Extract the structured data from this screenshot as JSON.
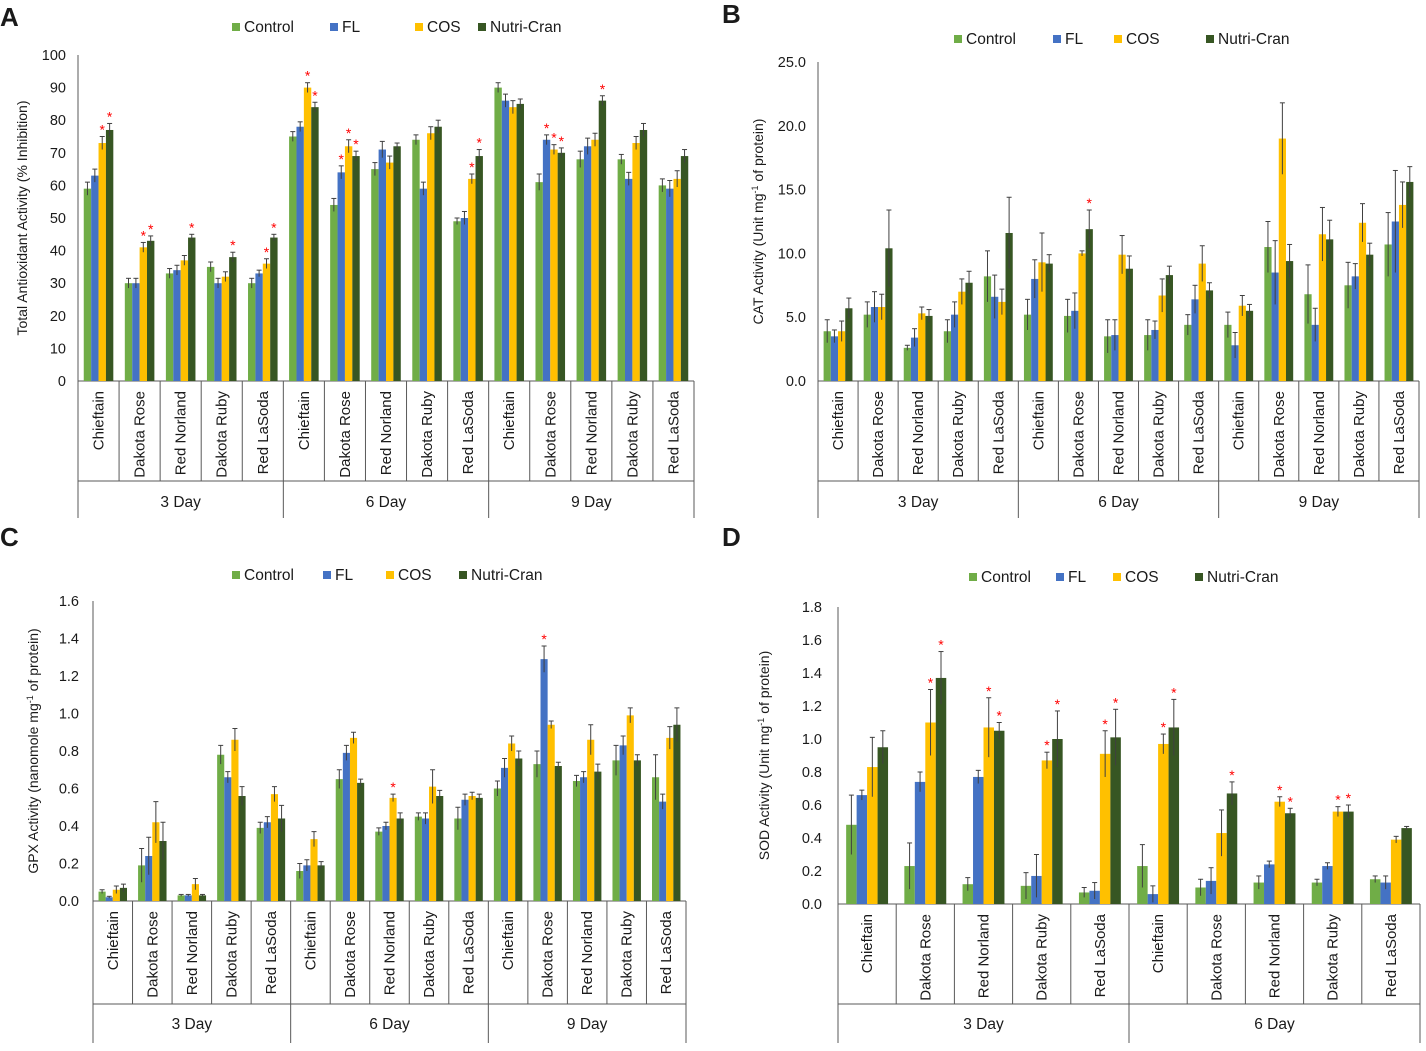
{
  "legend": [
    "Control",
    "FL",
    "COS",
    "Nutri-Cran"
  ],
  "colors": {
    "Control": "#70ad47",
    "FL": "#4472c4",
    "COS": "#ffc000",
    "Nutri-Cran": "#375623",
    "sig": "#ff0000",
    "axis": "#595959",
    "err": "#404040"
  },
  "chart_data": [
    {
      "panel": "A",
      "type": "bar",
      "ylabel": "Total Antioxidant Activity (% Inhibition)",
      "ylim": [
        0,
        100
      ],
      "ystep": 10,
      "ytick_decimals": 0,
      "varieties": [
        "Chieftain",
        "Dakota Rose",
        "Red Norland",
        "Dakota Ruby",
        "Red LaSoda"
      ],
      "groups": [
        "3 Day",
        "6 Day",
        "9 Day"
      ],
      "series": [
        {
          "name": "Control",
          "values": [
            59,
            30,
            33,
            35,
            30,
            75,
            54,
            65,
            74,
            49,
            90,
            61,
            68,
            68,
            60
          ],
          "errors": [
            2,
            1.5,
            1.5,
            1.5,
            1.5,
            1.5,
            2,
            2,
            1.5,
            1,
            1.5,
            2.5,
            2.5,
            1.5,
            2
          ],
          "sig": [
            false,
            false,
            false,
            false,
            false,
            false,
            false,
            false,
            false,
            false,
            false,
            false,
            false,
            false,
            false
          ]
        },
        {
          "name": "FL",
          "values": [
            63,
            30,
            34,
            30,
            33,
            78,
            64,
            71,
            59,
            50,
            86,
            74,
            72,
            62,
            59
          ],
          "errors": [
            2,
            1.5,
            1.5,
            1.5,
            1,
            1.5,
            2,
            2.5,
            2,
            2,
            2,
            1.5,
            2.5,
            2,
            2.5
          ],
          "sig": [
            false,
            false,
            false,
            false,
            false,
            false,
            true,
            false,
            false,
            false,
            false,
            true,
            false,
            false,
            false
          ]
        },
        {
          "name": "COS",
          "values": [
            73,
            41,
            37,
            32,
            36,
            90,
            72,
            67,
            76,
            62,
            84,
            71,
            74,
            73,
            62
          ],
          "errors": [
            2,
            1.5,
            1.5,
            1.5,
            1.5,
            1.5,
            2,
            2,
            2,
            1.5,
            2,
            1.5,
            2,
            2,
            2.5
          ],
          "sig": [
            true,
            true,
            false,
            false,
            true,
            true,
            true,
            false,
            false,
            true,
            false,
            true,
            false,
            false,
            false
          ]
        },
        {
          "name": "Nutri-Cran",
          "values": [
            77,
            43,
            44,
            38,
            44,
            84,
            69,
            72,
            78,
            69,
            85,
            70,
            86,
            77,
            69
          ],
          "errors": [
            2,
            1.5,
            1,
            1.5,
            1,
            1.5,
            1.5,
            1,
            2,
            2,
            1.5,
            1.5,
            1.5,
            2,
            2
          ],
          "sig": [
            true,
            true,
            true,
            true,
            true,
            true,
            true,
            false,
            false,
            true,
            false,
            true,
            true,
            false,
            false
          ]
        }
      ]
    },
    {
      "panel": "B",
      "type": "bar",
      "ylabel": "CAT Activity (Unit mg",
      "ylabel_sup": "-1",
      "ylabel_end": " of protein)",
      "ylim": [
        0,
        25
      ],
      "ystep": 5,
      "ytick_decimals": 1,
      "varieties": [
        "Chieftain",
        "Dakota Rose",
        "Red Norland",
        "Dakota Ruby",
        "Red LaSoda"
      ],
      "groups": [
        "3 Day",
        "6 Day",
        "9 Day"
      ],
      "series": [
        {
          "name": "Control",
          "values": [
            3.9,
            5.2,
            2.6,
            3.9,
            8.2,
            5.2,
            5.1,
            3.5,
            3.6,
            4.4,
            4.4,
            10.5,
            6.8,
            7.5,
            10.7
          ],
          "errors": [
            0.9,
            1.0,
            0.2,
            0.9,
            2.0,
            1.2,
            1.3,
            1.3,
            1.2,
            0.8,
            1.0,
            2.0,
            2.3,
            1.8,
            2.5
          ],
          "sig": [
            false,
            false,
            false,
            false,
            false,
            false,
            false,
            false,
            false,
            false,
            false,
            false,
            false,
            false,
            false
          ]
        },
        {
          "name": "FL",
          "values": [
            3.5,
            5.8,
            3.4,
            5.2,
            6.6,
            8.0,
            5.5,
            3.6,
            4.0,
            6.4,
            2.8,
            8.5,
            4.4,
            8.2,
            12.5
          ],
          "errors": [
            0.5,
            1.2,
            0.7,
            1.0,
            1.7,
            1.5,
            1.4,
            1.2,
            0.7,
            1.1,
            1.0,
            2.5,
            1.3,
            1.0,
            4.0
          ],
          "sig": [
            false,
            false,
            false,
            false,
            false,
            false,
            false,
            false,
            false,
            false,
            false,
            false,
            false,
            false,
            false
          ]
        },
        {
          "name": "COS",
          "values": [
            3.9,
            5.8,
            5.3,
            7.0,
            6.2,
            9.3,
            10.0,
            9.9,
            6.7,
            9.2,
            5.9,
            19.0,
            11.5,
            12.4,
            13.8
          ],
          "errors": [
            0.8,
            1.0,
            0.5,
            1.0,
            1.0,
            2.3,
            0.2,
            1.5,
            1.3,
            1.4,
            0.8,
            2.8,
            2.1,
            1.5,
            1.8
          ],
          "sig": [
            false,
            false,
            false,
            false,
            false,
            false,
            false,
            false,
            false,
            false,
            false,
            false,
            false,
            false,
            false
          ]
        },
        {
          "name": "Nutri-Cran",
          "values": [
            5.7,
            10.4,
            5.1,
            7.7,
            11.6,
            9.2,
            11.9,
            8.8,
            8.3,
            7.1,
            5.5,
            9.4,
            11.1,
            9.9,
            15.6
          ],
          "errors": [
            0.8,
            3.0,
            0.5,
            0.9,
            2.8,
            0.7,
            1.5,
            1.0,
            0.7,
            0.6,
            0.5,
            1.3,
            1.5,
            0.9,
            1.2
          ],
          "sig": [
            false,
            false,
            false,
            false,
            false,
            false,
            true,
            false,
            false,
            false,
            false,
            false,
            false,
            false,
            false
          ]
        }
      ]
    },
    {
      "panel": "C",
      "type": "bar",
      "ylabel": "GPX Activity (nanomole  mg",
      "ylabel_sup": "-1",
      "ylabel_end": " of protein)",
      "ylim": [
        0,
        1.6
      ],
      "ystep": 0.2,
      "ytick_decimals": 1,
      "varieties": [
        "Chieftain",
        "Dakota Rose",
        "Red Norland",
        "Dakota Ruby",
        "Red LaSoda"
      ],
      "groups": [
        "3 Day",
        "6 Day",
        "9 Day"
      ],
      "series": [
        {
          "name": "Control",
          "values": [
            0.05,
            0.19,
            0.03,
            0.78,
            0.39,
            0.16,
            0.65,
            0.37,
            0.45,
            0.44,
            0.6,
            0.73,
            0.64,
            0.75,
            0.66
          ],
          "errors": [
            0.01,
            0.09,
            0.005,
            0.05,
            0.03,
            0.04,
            0.05,
            0.02,
            0.02,
            0.06,
            0.04,
            0.07,
            0.03,
            0.08,
            0.12
          ],
          "sig": [
            false,
            false,
            false,
            false,
            false,
            false,
            false,
            false,
            false,
            false,
            false,
            false,
            false,
            false,
            false
          ]
        },
        {
          "name": "FL",
          "values": [
            0.02,
            0.24,
            0.03,
            0.66,
            0.42,
            0.19,
            0.79,
            0.4,
            0.44,
            0.54,
            0.71,
            1.29,
            0.66,
            0.83,
            0.53
          ],
          "errors": [
            0.005,
            0.1,
            0.005,
            0.03,
            0.03,
            0.03,
            0.04,
            0.02,
            0.03,
            0.03,
            0.05,
            0.07,
            0.03,
            0.05,
            0.04
          ],
          "sig": [
            false,
            false,
            false,
            false,
            false,
            false,
            false,
            false,
            false,
            false,
            false,
            true,
            false,
            false,
            false
          ]
        },
        {
          "name": "COS",
          "values": [
            0.06,
            0.42,
            0.09,
            0.86,
            0.57,
            0.33,
            0.87,
            0.55,
            0.61,
            0.56,
            0.84,
            0.94,
            0.86,
            0.99,
            0.87
          ],
          "errors": [
            0.02,
            0.11,
            0.03,
            0.06,
            0.04,
            0.04,
            0.03,
            0.02,
            0.09,
            0.02,
            0.04,
            0.02,
            0.08,
            0.04,
            0.06
          ],
          "sig": [
            false,
            false,
            false,
            false,
            false,
            false,
            false,
            true,
            false,
            false,
            false,
            false,
            false,
            false,
            false
          ]
        },
        {
          "name": "Nutri-Cran",
          "values": [
            0.07,
            0.32,
            0.03,
            0.56,
            0.44,
            0.19,
            0.63,
            0.44,
            0.56,
            0.55,
            0.76,
            0.72,
            0.69,
            0.75,
            0.94
          ],
          "errors": [
            0.02,
            0.1,
            0.005,
            0.05,
            0.07,
            0.02,
            0.02,
            0.03,
            0.03,
            0.02,
            0.04,
            0.02,
            0.04,
            0.03,
            0.09
          ],
          "sig": [
            false,
            false,
            false,
            false,
            false,
            false,
            false,
            false,
            false,
            false,
            false,
            false,
            false,
            false,
            false
          ]
        }
      ]
    },
    {
      "panel": "D",
      "type": "bar",
      "ylabel": "SOD Activity (Unit mg",
      "ylabel_sup": "-1",
      "ylabel_end": " of protein)",
      "ylim": [
        0,
        1.8
      ],
      "ystep": 0.2,
      "ytick_decimals": 1,
      "varieties": [
        "Chieftain",
        "Dakota Rose",
        "Red Norland",
        "Dakota Ruby",
        "Red LaSoda"
      ],
      "groups": [
        "3 Day",
        "6 Day"
      ],
      "series": [
        {
          "name": "Control",
          "values": [
            0.48,
            0.23,
            0.12,
            0.11,
            0.07,
            0.23,
            0.1,
            0.13,
            0.13,
            0.15
          ],
          "errors": [
            0.18,
            0.14,
            0.04,
            0.08,
            0.03,
            0.13,
            0.05,
            0.04,
            0.02,
            0.02
          ],
          "sig": [
            false,
            false,
            false,
            false,
            false,
            false,
            false,
            false,
            false,
            false
          ]
        },
        {
          "name": "FL",
          "values": [
            0.66,
            0.74,
            0.77,
            0.17,
            0.08,
            0.06,
            0.14,
            0.24,
            0.23,
            0.13
          ],
          "errors": [
            0.03,
            0.06,
            0.04,
            0.13,
            0.05,
            0.05,
            0.08,
            0.02,
            0.02,
            0.04
          ],
          "sig": [
            false,
            false,
            false,
            false,
            false,
            false,
            false,
            false,
            false,
            false
          ]
        },
        {
          "name": "COS",
          "values": [
            0.83,
            1.1,
            1.07,
            0.87,
            0.91,
            0.97,
            0.43,
            0.62,
            0.56,
            0.39
          ],
          "errors": [
            0.18,
            0.2,
            0.18,
            0.05,
            0.14,
            0.06,
            0.14,
            0.03,
            0.03,
            0.02
          ],
          "sig": [
            false,
            true,
            true,
            true,
            true,
            true,
            false,
            true,
            true,
            false
          ]
        },
        {
          "name": "Nutri-Cran",
          "values": [
            0.95,
            1.37,
            1.05,
            1.0,
            1.01,
            1.07,
            0.67,
            0.55,
            0.56,
            0.46
          ],
          "errors": [
            0.1,
            0.16,
            0.05,
            0.17,
            0.17,
            0.17,
            0.07,
            0.03,
            0.04,
            0.01
          ],
          "sig": [
            false,
            true,
            true,
            true,
            true,
            true,
            true,
            true,
            true,
            false
          ]
        }
      ]
    }
  ]
}
